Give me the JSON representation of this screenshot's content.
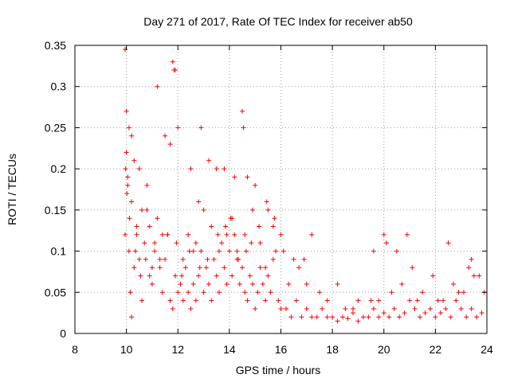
{
  "chart_data": {
    "type": "scatter",
    "title": "Day 271 of 2017, Rate Of TEC Index for receiver ab50",
    "xlabel": "GPS time / hours",
    "ylabel": "ROTI / TECUs",
    "xlim": [
      8,
      24
    ],
    "ylim": [
      0,
      0.35
    ],
    "xticks": [
      8,
      10,
      12,
      14,
      16,
      18,
      20,
      22,
      24
    ],
    "yticks": [
      0,
      0.05,
      0.1,
      0.15,
      0.2,
      0.25,
      0.3,
      0.35
    ],
    "xtick_labels": [
      "8",
      "10",
      "12",
      "14",
      "16",
      "18",
      "20",
      "22",
      "24"
    ],
    "ytick_labels": [
      "0",
      "0.05",
      "0.1",
      "0.15",
      "0.2",
      "0.25",
      "0.3",
      "0.35"
    ],
    "grid": true,
    "marker": "+",
    "color": "#ff0000",
    "series": [
      {
        "name": "ROTI",
        "x": [
          9.95,
          10.0,
          10.05,
          10.1,
          10.15,
          10.2,
          10.3,
          10.4,
          10.5,
          10.6,
          10.7,
          10.8,
          10.9,
          11.0,
          11.1,
          11.2,
          11.3,
          11.4,
          11.5,
          11.6,
          11.7,
          11.8,
          11.9,
          12.0,
          12.1,
          12.2,
          12.3,
          12.4,
          12.5,
          12.6,
          12.7,
          12.8,
          12.9,
          13.0,
          13.1,
          13.2,
          13.3,
          13.4,
          13.5,
          13.6,
          13.7,
          13.8,
          13.9,
          14.0,
          14.1,
          14.2,
          14.3,
          14.4,
          14.5,
          14.6,
          14.7,
          14.8,
          14.9,
          15.0,
          15.1,
          15.2,
          15.3,
          15.4,
          15.5,
          15.6,
          15.7,
          15.8,
          15.9,
          16.0,
          16.2,
          16.4,
          16.6,
          16.8,
          17.0,
          17.2,
          17.4,
          17.6,
          17.8,
          18.0,
          18.2,
          18.4,
          18.6,
          18.8,
          19.0,
          19.2,
          19.4,
          19.6,
          19.8,
          20.0,
          20.2,
          20.4,
          20.6,
          20.8,
          21.0,
          21.2,
          21.4,
          21.6,
          21.8,
          22.0,
          22.2,
          22.4,
          22.6,
          22.8,
          23.0,
          23.2,
          23.4,
          23.6,
          23.8,
          10.0,
          10.1,
          10.2,
          10.3,
          10.5,
          10.8,
          11.2,
          11.5,
          11.7,
          11.8,
          11.85,
          11.9,
          12.0,
          12.5,
          12.8,
          12.9,
          13.2,
          13.5,
          13.8,
          14.2,
          14.5,
          14.55,
          14.7,
          15.0,
          15.5,
          16.5,
          17.2,
          18.2,
          19.6,
          20.0,
          20.5,
          20.9,
          22.5,
          23.5,
          9.95,
          10.05,
          10.2,
          10.4,
          10.6,
          10.9,
          11.1,
          11.3,
          11.6,
          12.2,
          12.4,
          12.6,
          12.7,
          13.0,
          13.3,
          13.6,
          13.9,
          14.1,
          14.3,
          14.6,
          14.9,
          15.2,
          15.4,
          15.7,
          16.0,
          16.3,
          16.7,
          17.0,
          17.5,
          18.5,
          19.0,
          19.5,
          20.1,
          20.7,
          21.1,
          21.5,
          21.9,
          22.3,
          22.7,
          23.1,
          23.4,
          23.7,
          9.97,
          10.02,
          10.12,
          10.35,
          10.55,
          10.75,
          11.0,
          11.4,
          11.95,
          12.15,
          12.45,
          12.85,
          13.15,
          13.55,
          13.85,
          14.05,
          14.35,
          14.65,
          14.85,
          15.15,
          15.45,
          15.75,
          16.1,
          16.9,
          17.8,
          18.8,
          19.8,
          20.3,
          21.3,
          22.1,
          22.9,
          23.3,
          23.9
        ],
        "y": [
          0.12,
          0.22,
          0.18,
          0.1,
          0.05,
          0.02,
          0.08,
          0.13,
          0.09,
          0.04,
          0.11,
          0.15,
          0.07,
          0.06,
          0.1,
          0.14,
          0.08,
          0.05,
          0.09,
          0.12,
          0.04,
          0.03,
          0.07,
          0.05,
          0.06,
          0.04,
          0.08,
          0.05,
          0.03,
          0.06,
          0.04,
          0.07,
          0.1,
          0.05,
          0.08,
          0.06,
          0.04,
          0.09,
          0.07,
          0.05,
          0.11,
          0.08,
          0.06,
          0.1,
          0.07,
          0.12,
          0.09,
          0.06,
          0.08,
          0.05,
          0.04,
          0.07,
          0.06,
          0.03,
          0.05,
          0.08,
          0.06,
          0.04,
          0.07,
          0.05,
          0.09,
          0.1,
          0.04,
          0.03,
          0.03,
          0.02,
          0.04,
          0.02,
          0.03,
          0.02,
          0.02,
          0.03,
          0.02,
          0.02,
          0.015,
          0.02,
          0.018,
          0.025,
          0.015,
          0.02,
          0.02,
          0.03,
          0.02,
          0.025,
          0.02,
          0.03,
          0.02,
          0.025,
          0.04,
          0.03,
          0.02,
          0.025,
          0.03,
          0.02,
          0.025,
          0.03,
          0.02,
          0.04,
          0.03,
          0.02,
          0.03,
          0.02,
          0.025,
          0.27,
          0.25,
          0.24,
          0.21,
          0.2,
          0.18,
          0.3,
          0.24,
          0.23,
          0.33,
          0.32,
          0.32,
          0.25,
          0.2,
          0.16,
          0.25,
          0.21,
          0.2,
          0.2,
          0.19,
          0.27,
          0.25,
          0.19,
          0.18,
          0.15,
          0.09,
          0.12,
          0.06,
          0.1,
          0.12,
          0.1,
          0.12,
          0.11,
          0.07,
          0.345,
          0.19,
          0.16,
          0.12,
          0.15,
          0.13,
          0.11,
          0.09,
          0.12,
          0.09,
          0.12,
          0.1,
          0.11,
          0.15,
          0.13,
          0.1,
          0.12,
          0.14,
          0.1,
          0.12,
          0.15,
          0.11,
          0.08,
          0.13,
          0.12,
          0.06,
          0.08,
          0.06,
          0.05,
          0.03,
          0.04,
          0.04,
          0.11,
          0.06,
          0.08,
          0.05,
          0.07,
          0.04,
          0.06,
          0.05,
          0.09,
          0.07,
          0.2,
          0.17,
          0.14,
          0.1,
          0.07,
          0.09,
          0.08,
          0.12,
          0.11,
          0.07,
          0.1,
          0.08,
          0.09,
          0.12,
          0.13,
          0.14,
          0.09,
          0.1,
          0.11,
          0.13,
          0.16,
          0.14,
          0.1,
          0.09,
          0.04,
          0.03,
          0.04,
          0.05,
          0.04,
          0.04,
          0.05,
          0.08,
          0.05
        ]
      }
    ]
  }
}
